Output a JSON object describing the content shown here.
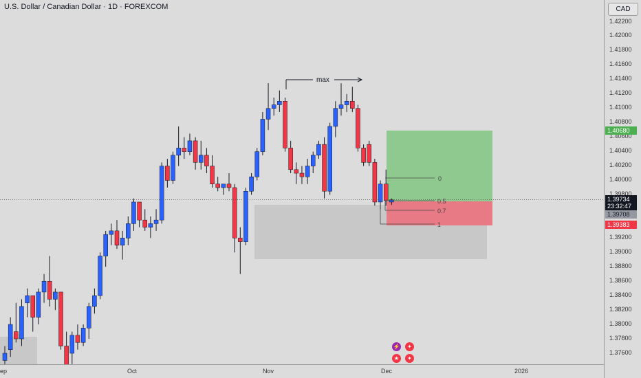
{
  "header": {
    "symbol_title": "U.S. Dollar / Canadian Dollar · 1D · FOREXCOM"
  },
  "price_axis": {
    "currency": "CAD",
    "ticks": [
      "1.42200",
      "1.42000",
      "1.41800",
      "1.41600",
      "1.41400",
      "1.41200",
      "1.41000",
      "1.40800",
      "1.40600",
      "1.40400",
      "1.40200",
      "1.40000",
      "1.39800",
      "1.39200",
      "1.39000",
      "1.38800",
      "1.38600",
      "1.38400",
      "1.38200",
      "1.38000",
      "1.37800",
      "1.37600"
    ],
    "labels": {
      "target": "1.40680",
      "current": "1.39734",
      "countdown": "23:32:47",
      "entry": "1.39708",
      "stop": "1.39383"
    }
  },
  "time_axis": {
    "labels": [
      "ep",
      "Oct",
      "Nov",
      "Dec",
      "2026"
    ]
  },
  "annotations": {
    "max_label": "max",
    "fib_levels": [
      "0",
      "0.5",
      "0.7",
      "1"
    ]
  },
  "colors": {
    "up": "#2962ff",
    "down": "#f23645",
    "target_zone": "#8fc98f",
    "stop_zone": "#e87a85",
    "zone_gray": "#c8c8c8",
    "target_label_bg": "#4caf50",
    "stop_label_bg": "#f23645",
    "current_label_bg": "#131722",
    "entry_label_bg": "#9598a1"
  },
  "events": [
    "lightning-icon",
    "canada-flag-icon",
    "us-flag-icon",
    "canada-flag-icon"
  ],
  "chart_data": {
    "type": "candlestick",
    "symbol": "USDCAD",
    "interval": "1D",
    "ylim": [
      1.3745,
      1.423
    ],
    "candles": [
      {
        "o": 1.375,
        "h": 1.377,
        "l": 1.3745,
        "c": 1.376
      },
      {
        "o": 1.3765,
        "h": 1.381,
        "l": 1.3755,
        "c": 1.38
      },
      {
        "o": 1.379,
        "h": 1.383,
        "l": 1.3775,
        "c": 1.378
      },
      {
        "o": 1.378,
        "h": 1.3835,
        "l": 1.377,
        "c": 1.3825
      },
      {
        "o": 1.383,
        "h": 1.385,
        "l": 1.381,
        "c": 1.384
      },
      {
        "o": 1.384,
        "h": 1.384,
        "l": 1.379,
        "c": 1.381
      },
      {
        "o": 1.381,
        "h": 1.385,
        "l": 1.38,
        "c": 1.3845
      },
      {
        "o": 1.3845,
        "h": 1.387,
        "l": 1.383,
        "c": 1.386
      },
      {
        "o": 1.386,
        "h": 1.3895,
        "l": 1.3825,
        "c": 1.3835
      },
      {
        "o": 1.3835,
        "h": 1.385,
        "l": 1.382,
        "c": 1.3845
      },
      {
        "o": 1.3845,
        "h": 1.3845,
        "l": 1.3765,
        "c": 1.377
      },
      {
        "o": 1.377,
        "h": 1.379,
        "l": 1.3735,
        "c": 1.374
      },
      {
        "o": 1.376,
        "h": 1.379,
        "l": 1.3745,
        "c": 1.3785
      },
      {
        "o": 1.3785,
        "h": 1.38,
        "l": 1.3765,
        "c": 1.3775
      },
      {
        "o": 1.3775,
        "h": 1.38,
        "l": 1.377,
        "c": 1.3795
      },
      {
        "o": 1.3795,
        "h": 1.383,
        "l": 1.378,
        "c": 1.3825
      },
      {
        "o": 1.3825,
        "h": 1.385,
        "l": 1.3815,
        "c": 1.384
      },
      {
        "o": 1.384,
        "h": 1.39,
        "l": 1.3835,
        "c": 1.3895
      },
      {
        "o": 1.3895,
        "h": 1.393,
        "l": 1.388,
        "c": 1.3925
      },
      {
        "o": 1.3925,
        "h": 1.394,
        "l": 1.391,
        "c": 1.393
      },
      {
        "o": 1.393,
        "h": 1.3945,
        "l": 1.3905,
        "c": 1.391
      },
      {
        "o": 1.391,
        "h": 1.393,
        "l": 1.389,
        "c": 1.392
      },
      {
        "o": 1.392,
        "h": 1.395,
        "l": 1.391,
        "c": 1.394
      },
      {
        "o": 1.394,
        "h": 1.3975,
        "l": 1.393,
        "c": 1.397
      },
      {
        "o": 1.397,
        "h": 1.397,
        "l": 1.3935,
        "c": 1.3945
      },
      {
        "o": 1.3945,
        "h": 1.396,
        "l": 1.393,
        "c": 1.3935
      },
      {
        "o": 1.3935,
        "h": 1.395,
        "l": 1.392,
        "c": 1.394
      },
      {
        "o": 1.394,
        "h": 1.396,
        "l": 1.393,
        "c": 1.3945
      },
      {
        "o": 1.3945,
        "h": 1.4025,
        "l": 1.394,
        "c": 1.402
      },
      {
        "o": 1.402,
        "h": 1.403,
        "l": 1.399,
        "c": 1.4
      },
      {
        "o": 1.4,
        "h": 1.404,
        "l": 1.3995,
        "c": 1.4035
      },
      {
        "o": 1.4035,
        "h": 1.4075,
        "l": 1.402,
        "c": 1.4045
      },
      {
        "o": 1.4045,
        "h": 1.406,
        "l": 1.403,
        "c": 1.404
      },
      {
        "o": 1.404,
        "h": 1.4065,
        "l": 1.4035,
        "c": 1.4055
      },
      {
        "o": 1.4055,
        "h": 1.406,
        "l": 1.4015,
        "c": 1.4025
      },
      {
        "o": 1.4025,
        "h": 1.4055,
        "l": 1.4015,
        "c": 1.4035
      },
      {
        "o": 1.4035,
        "h": 1.4045,
        "l": 1.401,
        "c": 1.402
      },
      {
        "o": 1.402,
        "h": 1.4035,
        "l": 1.399,
        "c": 1.3995
      },
      {
        "o": 1.3995,
        "h": 1.4005,
        "l": 1.3985,
        "c": 1.399
      },
      {
        "o": 1.399,
        "h": 1.3995,
        "l": 1.398,
        "c": 1.3995
      },
      {
        "o": 1.3995,
        "h": 1.401,
        "l": 1.3985,
        "c": 1.399
      },
      {
        "o": 1.399,
        "h": 1.3995,
        "l": 1.39,
        "c": 1.392
      },
      {
        "o": 1.392,
        "h": 1.3935,
        "l": 1.387,
        "c": 1.3915
      },
      {
        "o": 1.3915,
        "h": 1.399,
        "l": 1.391,
        "c": 1.3985
      },
      {
        "o": 1.3985,
        "h": 1.401,
        "l": 1.398,
        "c": 1.4005
      },
      {
        "o": 1.4005,
        "h": 1.4045,
        "l": 1.4,
        "c": 1.404
      },
      {
        "o": 1.404,
        "h": 1.4095,
        "l": 1.4035,
        "c": 1.4085
      },
      {
        "o": 1.4085,
        "h": 1.4135,
        "l": 1.407,
        "c": 1.41
      },
      {
        "o": 1.41,
        "h": 1.4115,
        "l": 1.409,
        "c": 1.4105
      },
      {
        "o": 1.4105,
        "h": 1.4125,
        "l": 1.4095,
        "c": 1.411
      },
      {
        "o": 1.411,
        "h": 1.4115,
        "l": 1.404,
        "c": 1.4045
      },
      {
        "o": 1.4045,
        "h": 1.4055,
        "l": 1.401,
        "c": 1.4015
      },
      {
        "o": 1.4015,
        "h": 1.4025,
        "l": 1.3995,
        "c": 1.401
      },
      {
        "o": 1.401,
        "h": 1.402,
        "l": 1.3995,
        "c": 1.4005
      },
      {
        "o": 1.4005,
        "h": 1.403,
        "l": 1.3995,
        "c": 1.402
      },
      {
        "o": 1.402,
        "h": 1.404,
        "l": 1.401,
        "c": 1.4035
      },
      {
        "o": 1.4035,
        "h": 1.4055,
        "l": 1.403,
        "c": 1.405
      },
      {
        "o": 1.405,
        "h": 1.406,
        "l": 1.3975,
        "c": 1.3985
      },
      {
        "o": 1.3985,
        "h": 1.408,
        "l": 1.398,
        "c": 1.4075
      },
      {
        "o": 1.4075,
        "h": 1.411,
        "l": 1.406,
        "c": 1.41
      },
      {
        "o": 1.41,
        "h": 1.4135,
        "l": 1.409,
        "c": 1.4105
      },
      {
        "o": 1.4105,
        "h": 1.412,
        "l": 1.4095,
        "c": 1.411
      },
      {
        "o": 1.411,
        "h": 1.413,
        "l": 1.4095,
        "c": 1.41
      },
      {
        "o": 1.41,
        "h": 1.4105,
        "l": 1.404,
        "c": 1.4045
      },
      {
        "o": 1.4045,
        "h": 1.405,
        "l": 1.402,
        "c": 1.4025
      },
      {
        "o": 1.405,
        "h": 1.4055,
        "l": 1.402,
        "c": 1.4025
      },
      {
        "o": 1.4025,
        "h": 1.403,
        "l": 1.3965,
        "c": 1.397
      },
      {
        "o": 1.397,
        "h": 1.4,
        "l": 1.396,
        "c": 1.3995
      },
      {
        "o": 1.3995,
        "h": 1.4015,
        "l": 1.3965,
        "c": 1.3972
      },
      {
        "o": 1.397,
        "h": 1.3975,
        "l": 1.3966,
        "c": 1.3973
      }
    ]
  }
}
